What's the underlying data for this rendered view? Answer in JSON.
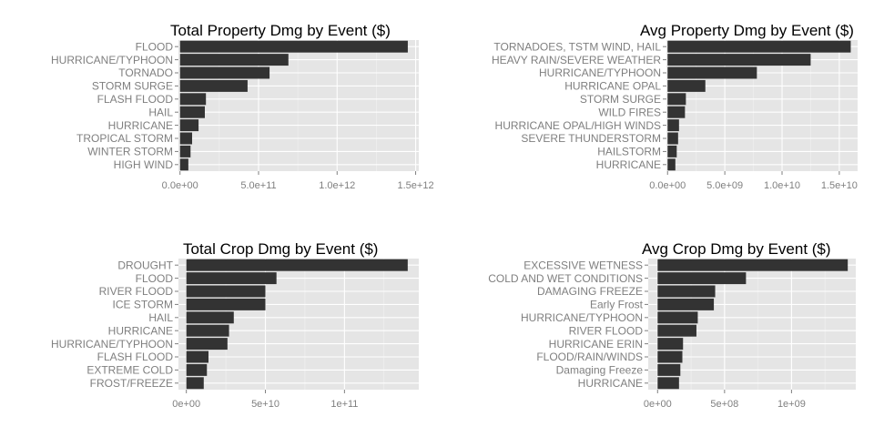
{
  "colors": {
    "panel_bg": "#e5e5e5",
    "grid_major": "#ffffff",
    "grid_minor": "#f2f2f2",
    "bar": "#333333",
    "text_axis": "#7f7f7f",
    "title": "#000000"
  },
  "chart_data": [
    {
      "type": "bar",
      "orientation": "horizontal",
      "title": "Total Property Dmg by Event ($)",
      "xlabel": "",
      "ylabel": "",
      "grid": true,
      "categories": [
        "FLOOD",
        "HURRICANE/TYPHOON",
        "TORNADO",
        "STORM SURGE",
        "FLASH FLOOD",
        "HAIL",
        "HURRICANE",
        "TROPICAL STORM",
        "WINTER STORM",
        "HIGH WIND"
      ],
      "values": [
        1450000000000.0,
        690000000000.0,
        570000000000.0,
        430000000000.0,
        165000000000.0,
        158000000000.0,
        118000000000.0,
        77000000000.0,
        67000000000.0,
        53000000000.0
      ],
      "xlim": [
        -10000000000.0,
        1520000000000.0
      ],
      "xticks": [
        0,
        500000000000.0,
        1000000000000.0,
        1500000000000.0
      ],
      "xtick_labels": [
        "0.0e+00",
        "5.0e+11",
        "1.0e+12",
        "1.5e+12"
      ]
    },
    {
      "type": "bar",
      "orientation": "horizontal",
      "title": "Avg Property Dmg by Event ($)",
      "xlabel": "",
      "ylabel": "",
      "grid": true,
      "categories": [
        "TORNADOES, TSTM WIND, HAIL",
        "HEAVY RAIN/SEVERE WEATHER",
        "HURRICANE/TYPHOON",
        "HURRICANE OPAL",
        "STORM SURGE",
        "WILD FIRES",
        "HURRICANE OPAL/HIGH WINDS",
        "SEVERE THUNDERSTORM",
        "HAILSTORM",
        "HURRICANE"
      ],
      "values": [
        16000000000.0,
        12500000000.0,
        7800000000.0,
        3300000000.0,
        1600000000.0,
        1520000000.0,
        1000000000.0,
        920000000.0,
        800000000.0,
        680000000.0
      ],
      "xlim": [
        -100000000.0,
        16600000000.0
      ],
      "xticks": [
        0,
        5000000000.0,
        10000000000.0,
        15000000000.0
      ],
      "xtick_labels": [
        "0.0e+00",
        "5.0e+09",
        "1.0e+10",
        "1.5e+10"
      ]
    },
    {
      "type": "bar",
      "orientation": "horizontal",
      "title": "Total Crop Dmg by Event ($)",
      "xlabel": "",
      "ylabel": "",
      "grid": true,
      "categories": [
        "DROUGHT",
        "FLOOD",
        "RIVER FLOOD",
        "ICE STORM",
        "HAIL",
        "HURRICANE",
        "HURRICANE/TYPHOON",
        "FLASH FLOOD",
        "EXTREME COLD",
        "FROST/FREEZE"
      ],
      "values": [
        140000000000.0,
        57000000000.0,
        50000000000.0,
        50000000000.0,
        30000000000.0,
        27000000000.0,
        26000000000.0,
        14000000000.0,
        13000000000.0,
        11000000000.0
      ],
      "xlim": [
        -5000000000.0,
        147000000000.0
      ],
      "xticks": [
        0,
        50000000000.0,
        100000000000.0
      ],
      "xtick_labels": [
        "0e+00",
        "5e+10",
        "1e+11"
      ]
    },
    {
      "type": "bar",
      "orientation": "horizontal",
      "title": "Avg Crop Dmg by Event ($)",
      "xlabel": "",
      "ylabel": "",
      "grid": true,
      "categories": [
        "EXCESSIVE WETNESS",
        "COLD AND WET CONDITIONS",
        "DAMAGING FREEZE",
        "Early Frost",
        "HURRICANE/TYPHOON",
        "RIVER FLOOD",
        "HURRICANE ERIN",
        "FLOOD/RAIN/WINDS",
        "Damaging Freeze",
        "HURRICANE"
      ],
      "values": [
        1420000000.0,
        660000000.0,
        430000000.0,
        420000000.0,
        300000000.0,
        290000000.0,
        190000000.0,
        185000000.0,
        170000000.0,
        160000000.0
      ],
      "xlim": [
        -70000000.0,
        1480000000.0
      ],
      "xticks": [
        0,
        500000000.0,
        1000000000.0
      ],
      "xtick_labels": [
        "0e+00",
        "5e+08",
        "1e+09"
      ]
    }
  ]
}
